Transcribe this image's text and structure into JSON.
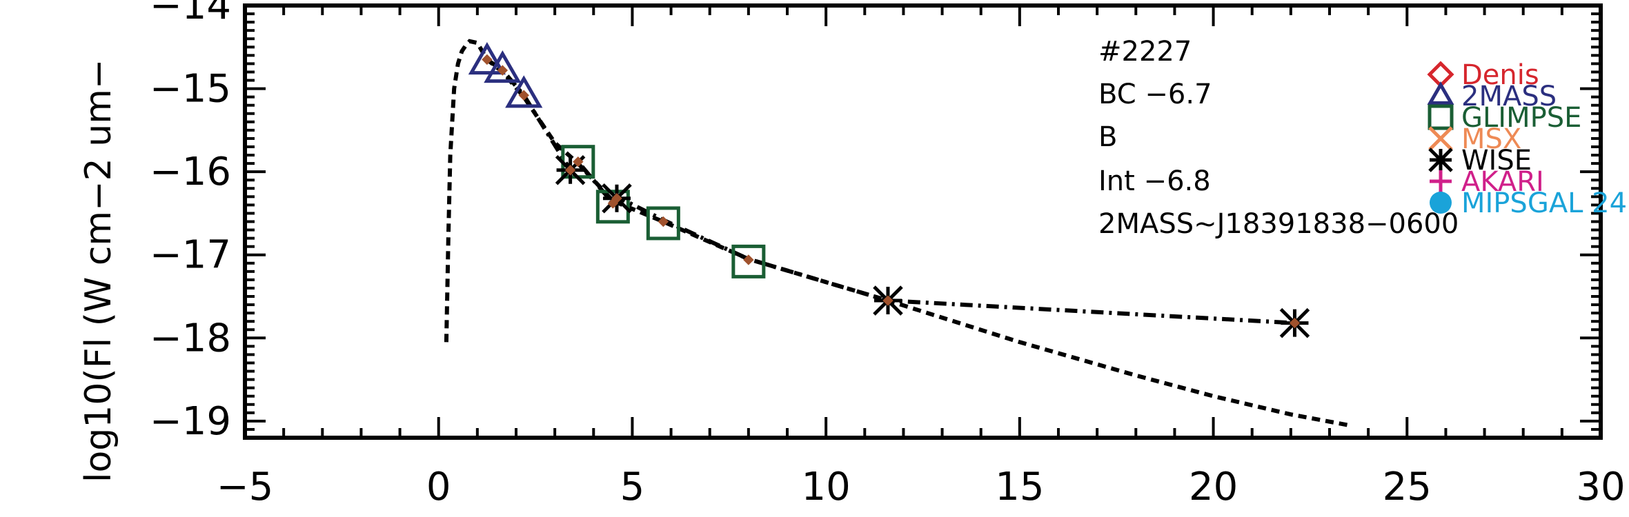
{
  "chart_data": {
    "type": "scatter",
    "title": "",
    "xlabel": "",
    "ylabel": "log10(Fl (W cm−2 um−",
    "xlim": [
      -5,
      30
    ],
    "ylim": [
      -19.2,
      -14.0
    ],
    "xticks": [
      -5,
      0,
      5,
      10,
      15,
      20,
      25,
      30
    ],
    "xtick_labels": [
      "−5",
      "0",
      "5",
      "10",
      "15",
      "20",
      "25",
      "30"
    ],
    "yticks": [
      -14,
      -15,
      -16,
      -17,
      -18,
      -19
    ],
    "ytick_labels": [
      "−14",
      "−15",
      "−16",
      "−17",
      "−18",
      "−19"
    ],
    "annotations": [
      "#2227",
      "BC  −6.7",
      "B",
      "Int  −6.8",
      "2MASS~J18391838−0600"
    ],
    "legend": {
      "placement": "top-right",
      "entries": [
        {
          "label": "Denis",
          "marker": "diamond",
          "color": "#d6262d"
        },
        {
          "label": "2MASS",
          "marker": "triangle",
          "color": "#2b2f7f"
        },
        {
          "label": "GLIMPSE",
          "marker": "square",
          "color": "#1a5e34"
        },
        {
          "label": "MSX",
          "marker": "x",
          "color": "#ee8a55"
        },
        {
          "label": "WISE",
          "marker": "asterisk",
          "color": "#000000"
        },
        {
          "label": "AKARI",
          "marker": "plus",
          "color": "#d0208a"
        },
        {
          "label": "MIPSGAL 24",
          "marker": "circle",
          "color": "#1aa3d9"
        }
      ]
    },
    "lines": [
      {
        "style": "dotted",
        "color": "#000000",
        "x": [
          0.2,
          0.25,
          0.3,
          0.4,
          0.5,
          0.6,
          0.7,
          0.8,
          1.0,
          1.25,
          1.65,
          2.2,
          3.0,
          3.6,
          4.5,
          5.8,
          8.0,
          11.6,
          15.0,
          18.0,
          20.0,
          22.0,
          23.5
        ],
        "y": [
          -18.05,
          -16.8,
          -15.8,
          -15.0,
          -14.7,
          -14.55,
          -14.48,
          -14.43,
          -14.45,
          -14.65,
          -14.8,
          -15.1,
          -15.65,
          -15.9,
          -16.35,
          -16.6,
          -17.05,
          -17.55,
          -18.05,
          -18.45,
          -18.7,
          -18.92,
          -19.05
        ]
      },
      {
        "style": "dashdot",
        "color": "#000000",
        "x": [
          1.25,
          1.65,
          2.2,
          3.4,
          3.6,
          4.5,
          4.6,
          5.8,
          8.0,
          11.6,
          22.1
        ],
        "y": [
          -14.65,
          -14.78,
          -15.08,
          -15.98,
          -15.88,
          -16.38,
          -16.3,
          -16.58,
          -17.05,
          -17.55,
          -17.82
        ]
      }
    ],
    "series": [
      {
        "name": "2MASS",
        "marker": "triangle",
        "color": "#2b2f7f",
        "x": [
          1.25,
          1.65,
          2.2
        ],
        "y": [
          -14.68,
          -14.78,
          -15.08
        ]
      },
      {
        "name": "GLIMPSE",
        "marker": "square",
        "color": "#1a5e34",
        "x": [
          3.6,
          4.5,
          5.8,
          8.0
        ],
        "y": [
          -15.88,
          -16.42,
          -16.62,
          -17.08
        ]
      },
      {
        "name": "WISE",
        "marker": "asterisk",
        "color": "#000000",
        "x": [
          3.4,
          4.6,
          11.6,
          22.1
        ],
        "y": [
          -15.98,
          -16.32,
          -17.55,
          -17.82
        ]
      },
      {
        "name": "model",
        "marker": "small-diamond",
        "color": "#a0522d",
        "x": [
          1.25,
          1.65,
          2.2,
          3.4,
          3.6,
          4.5,
          4.6,
          5.8,
          8.0,
          11.6,
          22.1
        ],
        "y": [
          -14.65,
          -14.78,
          -15.08,
          -15.98,
          -15.88,
          -16.38,
          -16.32,
          -16.6,
          -17.06,
          -17.55,
          -17.82
        ]
      }
    ]
  }
}
